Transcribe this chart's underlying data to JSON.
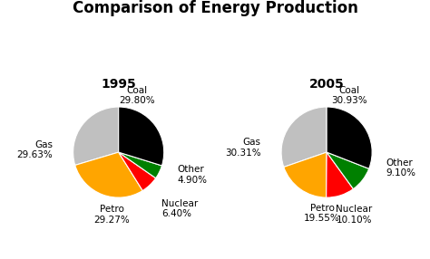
{
  "title": "Comparison of Energy Production",
  "chart1_year": "1995",
  "chart2_year": "2005",
  "values_1995_ordered": [
    29.63,
    29.27,
    6.4,
    4.9,
    29.8
  ],
  "values_2005_ordered": [
    30.31,
    19.55,
    10.1,
    9.1,
    30.93
  ],
  "colors_ordered": [
    "#c0c0c0",
    "#ffa500",
    "#ff0000",
    "#008000",
    "#000000"
  ],
  "startangle": 90,
  "title_fontsize": 12,
  "year_fontsize": 10,
  "label_fontsize": 7.5,
  "background_color": "#ffffff",
  "labels_1995": [
    [
      "Gas\n29.63%",
      -1.45,
      0.05,
      "right"
    ],
    [
      "Petro\n29.27%",
      -0.15,
      -1.38,
      "center"
    ],
    [
      "Nuclear\n6.40%",
      0.95,
      -1.25,
      "left"
    ],
    [
      "Other\n4.90%",
      1.3,
      -0.5,
      "left"
    ],
    [
      "Coal\n29.80%",
      0.4,
      1.25,
      "center"
    ]
  ],
  "labels_2005": [
    [
      "Gas\n30.31%",
      -1.45,
      0.1,
      "right"
    ],
    [
      "Petro\n19.55%",
      -0.1,
      -1.35,
      "center"
    ],
    [
      "Nuclear\n10.10%",
      0.6,
      -1.38,
      "center"
    ],
    [
      "Other\n9.10%",
      1.3,
      -0.35,
      "left"
    ],
    [
      "Coal\n30.93%",
      0.5,
      1.25,
      "center"
    ]
  ]
}
